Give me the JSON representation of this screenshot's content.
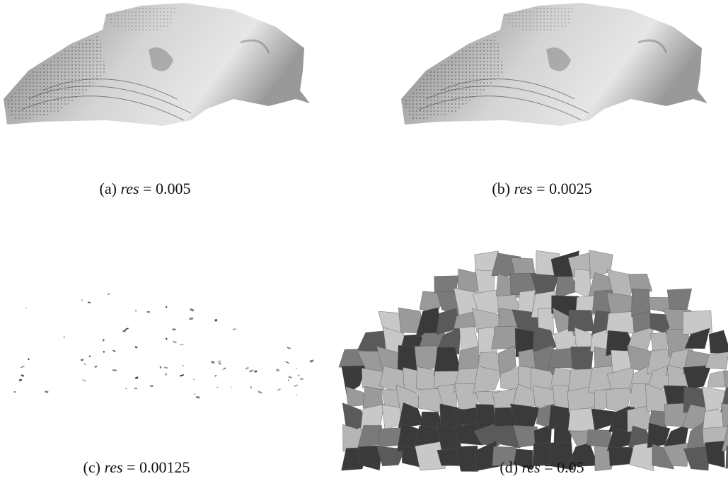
{
  "subfigures": [
    {
      "label": "(a)",
      "symbol": "res",
      "expr": "= 0.005"
    },
    {
      "label": "(b)",
      "symbol": "res",
      "expr": "= 0.0025"
    },
    {
      "label": "(c)",
      "symbol": "res",
      "expr": "= 0.00125"
    },
    {
      "label": "(d)",
      "symbol": "res",
      "expr": "= 0.05"
    }
  ]
}
